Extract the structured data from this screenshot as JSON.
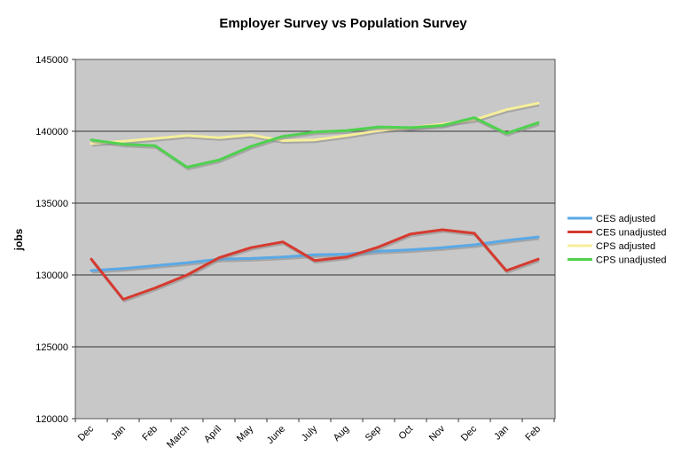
{
  "chart_data": {
    "type": "line",
    "title": "Employer Survey vs Population Survey",
    "xlabel": "",
    "ylabel": "jobs",
    "ylim": [
      120000,
      145000
    ],
    "yticks": [
      120000,
      125000,
      130000,
      135000,
      140000,
      145000
    ],
    "grid": "horizontal major gridlines",
    "legend_position": "right",
    "plot_background": "#c8c8c8",
    "categories": [
      "Dec",
      "Jan",
      "Feb",
      "March",
      "April",
      "May",
      "June",
      "July",
      "Aug",
      "Sep",
      "Oct",
      "Nov",
      "Dec",
      "Jan",
      "Feb"
    ],
    "series": [
      {
        "name": "CES adjusted",
        "color": "#5aa9e6",
        "values": [
          130300,
          130450,
          130650,
          130850,
          131100,
          131150,
          131250,
          131400,
          131450,
          131650,
          131750,
          131900,
          132100,
          132400,
          132650
        ]
      },
      {
        "name": "CES unadjusted",
        "color": "#d63a2f",
        "values": [
          131100,
          128300,
          129100,
          130000,
          131200,
          131900,
          132300,
          131000,
          131250,
          131950,
          132850,
          133150,
          132900,
          130300,
          131100
        ]
      },
      {
        "name": "CPS adjusted",
        "color": "#f6ef9a",
        "values": [
          139150,
          139300,
          139500,
          139700,
          139550,
          139750,
          139350,
          139400,
          139700,
          140050,
          140250,
          140500,
          140800,
          141500,
          141950
        ]
      },
      {
        "name": "CPS unadjusted",
        "color": "#4fd14f",
        "values": [
          139400,
          139100,
          139000,
          137500,
          138000,
          138950,
          139650,
          139950,
          140050,
          140300,
          140250,
          140400,
          140950,
          139850,
          140600
        ]
      }
    ]
  }
}
